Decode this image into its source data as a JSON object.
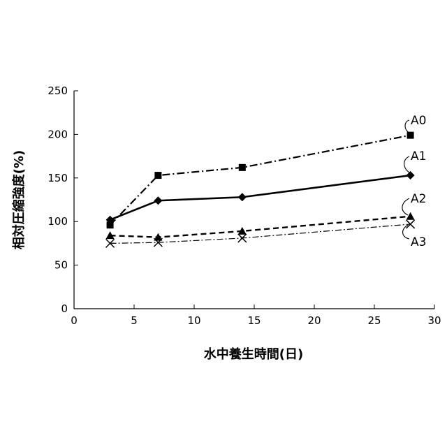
{
  "chart_data": {
    "type": "line",
    "title": "",
    "xlabel": "水中養生時間(日)",
    "ylabel": "相対圧縮強度(%)",
    "xlim": [
      0,
      30
    ],
    "ylim": [
      0,
      250
    ],
    "xticks": [
      "0",
      "5",
      "10",
      "15",
      "20",
      "25",
      "30"
    ],
    "yticks": [
      "0",
      "50",
      "100",
      "150",
      "200",
      "250"
    ],
    "grid": false,
    "legend": "direct-labels",
    "series": [
      {
        "name": "A0",
        "marker": "square",
        "line": "dash-dot",
        "color": "#000000",
        "x": [
          3,
          7,
          14,
          28
        ],
        "y": [
          96,
          153,
          162,
          199
        ]
      },
      {
        "name": "A1",
        "marker": "diamond",
        "line": "solid",
        "color": "#000000",
        "x": [
          3,
          7,
          14,
          28
        ],
        "y": [
          102,
          124,
          128,
          153
        ]
      },
      {
        "name": "A2",
        "marker": "triangle",
        "line": "dashed",
        "color": "#000000",
        "x": [
          3,
          7,
          14,
          28
        ],
        "y": [
          84,
          82,
          89,
          106
        ]
      },
      {
        "name": "A3",
        "marker": "x",
        "line": "dash-dot-thin",
        "color": "#000000",
        "x": [
          3,
          7,
          14,
          28
        ],
        "y": [
          75,
          76,
          81,
          97
        ]
      }
    ]
  }
}
